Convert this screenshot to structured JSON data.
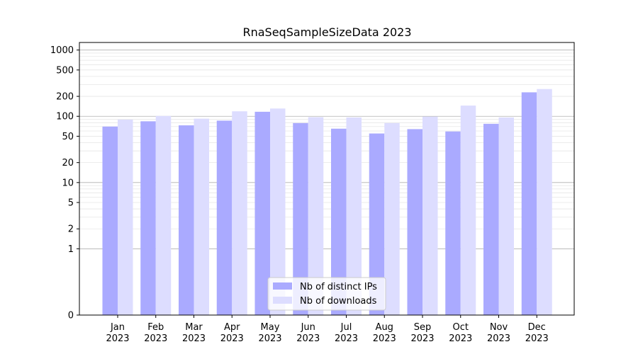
{
  "chart_data": {
    "type": "bar",
    "title": "RnaSeqSampleSizeData 2023",
    "xlabel": "",
    "ylabel": "",
    "yscale": "symlog",
    "yticks": [
      0,
      1,
      2,
      5,
      10,
      20,
      50,
      100,
      200,
      500,
      1000
    ],
    "ytick_labels": [
      "0",
      "1",
      "2",
      "5",
      "10",
      "20",
      "50",
      "100",
      "200",
      "500",
      "1000"
    ],
    "ylim": [
      0,
      1300
    ],
    "grid": true,
    "legend_position": "lower center",
    "categories": [
      "Jan\n2023",
      "Feb\n2023",
      "Mar\n2023",
      "Apr\n2023",
      "May\n2023",
      "Jun\n2023",
      "Jul\n2023",
      "Aug\n2023",
      "Sep\n2023",
      "Oct\n2023",
      "Nov\n2023",
      "Dec\n2023"
    ],
    "series": [
      {
        "name": "Nb of distinct IPs",
        "color": "#aaaaff",
        "values": [
          70,
          84,
          73,
          86,
          117,
          79,
          65,
          55,
          64,
          59,
          77,
          230
        ]
      },
      {
        "name": "Nb of downloads",
        "color": "#ddddff",
        "values": [
          89,
          101,
          92,
          119,
          131,
          97,
          96,
          79,
          99,
          145,
          96,
          258
        ]
      }
    ]
  }
}
